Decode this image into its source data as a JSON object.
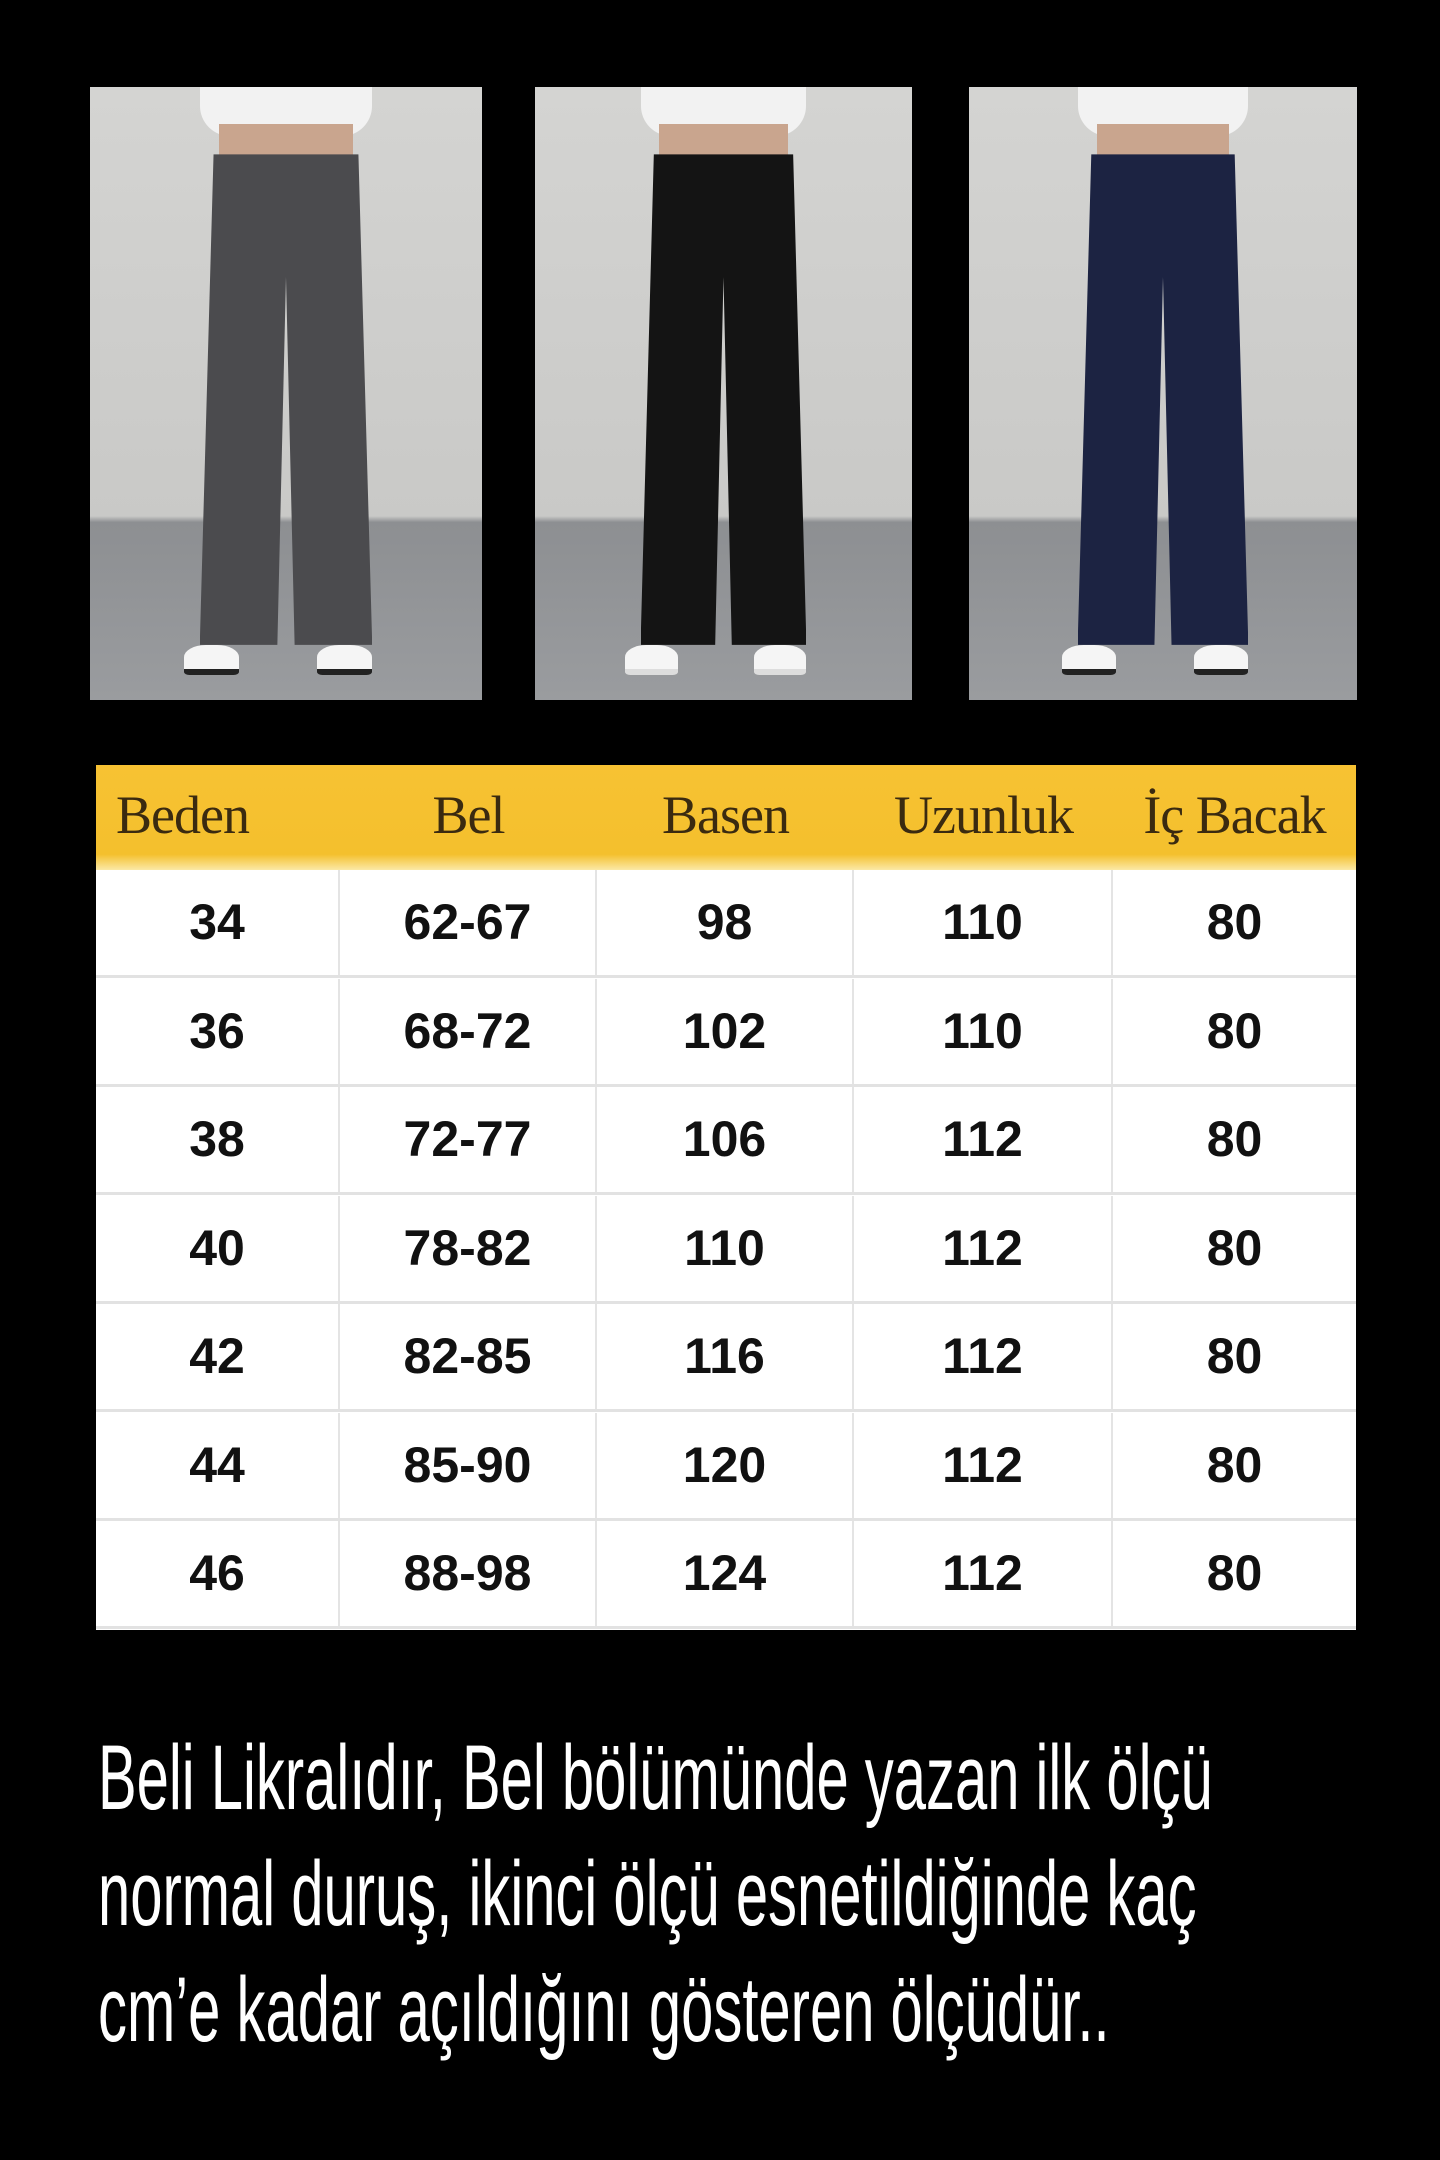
{
  "photos": [
    {
      "color": "#4b4b4e"
    },
    {
      "color": "#141414"
    },
    {
      "color": "#1c2342"
    }
  ],
  "colors": {
    "header_bg": "#f5c22f",
    "header_text": "#3a2a10",
    "background": "#000000"
  },
  "table": {
    "headers": [
      "Beden",
      "Bel",
      "Basen",
      "Uzunluk",
      "İç Bacak"
    ],
    "rows": [
      [
        "34",
        "62-67",
        "98",
        "110",
        "80"
      ],
      [
        "36",
        "68-72",
        "102",
        "110",
        "80"
      ],
      [
        "38",
        "72-77",
        "106",
        "112",
        "80"
      ],
      [
        "40",
        "78-82",
        "110",
        "112",
        "80"
      ],
      [
        "42",
        "82-85",
        "116",
        "112",
        "80"
      ],
      [
        "44",
        "85-90",
        "120",
        "112",
        "80"
      ],
      [
        "46",
        "88-98",
        "124",
        "112",
        "80"
      ]
    ]
  },
  "note": {
    "lines": [
      "Beli Likralıdır, Bel bölümünde yazan ilk ölçü",
      "normal duruş, ikinci ölçü esnetildiğinde kaç",
      "cm’e kadar açıldığını gösteren ölçüdür.."
    ]
  }
}
